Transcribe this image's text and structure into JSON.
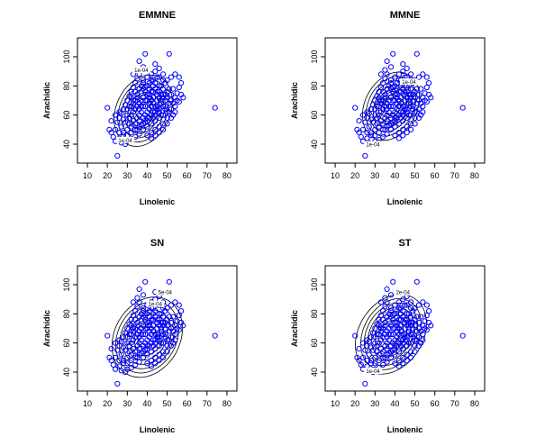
{
  "chart_data": [
    {
      "type": "scatter",
      "title": "EMMNE",
      "xlabel": "Linolenic",
      "ylabel": "Arachidic",
      "xlim": [
        5,
        85
      ],
      "ylim": [
        27,
        113
      ],
      "xticks": [
        10,
        20,
        30,
        40,
        50,
        60,
        70,
        80
      ],
      "yticks": [
        40,
        60,
        80,
        100
      ],
      "point_color": "#0000ff",
      "contour_color": "#000000",
      "contour": {
        "center": [
          38,
          63
        ],
        "axes": [
          [
            16,
            25
          ],
          [
            14,
            22
          ],
          [
            12,
            19
          ],
          [
            10,
            16
          ],
          [
            8.5,
            13
          ],
          [
            7,
            11
          ],
          [
            5.5,
            8.5
          ],
          [
            4,
            6
          ]
        ],
        "rotation": 0.45
      },
      "contour_labels": [
        {
          "text": "1e-04",
          "x": 37,
          "y": 90
        },
        {
          "text": "1e-04",
          "x": 29,
          "y": 42
        }
      ]
    },
    {
      "type": "scatter",
      "title": "MMNE",
      "xlabel": "Linolenic",
      "ylabel": "Arachidic",
      "xlim": [
        5,
        85
      ],
      "ylim": [
        27,
        113
      ],
      "xticks": [
        10,
        20,
        30,
        40,
        50,
        60,
        70,
        80
      ],
      "yticks": [
        40,
        60,
        80,
        100
      ],
      "point_color": "#0000ff",
      "contour_color": "#000000",
      "contour": {
        "center": [
          38,
          66
        ],
        "axes": [
          [
            16,
            24
          ],
          [
            14,
            21
          ],
          [
            12,
            18
          ],
          [
            10,
            15
          ],
          [
            8.5,
            12.5
          ],
          [
            7,
            10.5
          ],
          [
            5.5,
            8
          ],
          [
            4,
            6
          ]
        ],
        "rotation": 0.5
      },
      "contour_labels": [
        {
          "text": "1e-04",
          "x": 47,
          "y": 82
        },
        {
          "text": "1e-04",
          "x": 29,
          "y": 39
        }
      ]
    },
    {
      "type": "scatter",
      "title": "SN",
      "xlabel": "Linolenic",
      "ylabel": "Arachidic",
      "xlim": [
        5,
        85
      ],
      "ylim": [
        27,
        113
      ],
      "xticks": [
        10,
        20,
        30,
        40,
        50,
        60,
        70,
        80
      ],
      "yticks": [
        40,
        60,
        80,
        100
      ],
      "point_color": "#0000ff",
      "contour_color": "#000000",
      "contour": {
        "center": [
          40,
          64
        ],
        "axes": [
          [
            19,
            28
          ],
          [
            17,
            25
          ],
          [
            15,
            22
          ],
          [
            13,
            19
          ],
          [
            11,
            16
          ],
          [
            9,
            13
          ],
          [
            7,
            10
          ],
          [
            5,
            7
          ]
        ],
        "rotation": 0.4
      },
      "contour_labels": [
        {
          "text": "5e-04",
          "x": 49,
          "y": 94
        },
        {
          "text": "1e-04",
          "x": 44,
          "y": 86
        }
      ]
    },
    {
      "type": "scatter",
      "title": "ST",
      "xlabel": "Linolenic",
      "ylabel": "Arachidic",
      "xlim": [
        5,
        85
      ],
      "ylim": [
        27,
        113
      ],
      "xticks": [
        10,
        20,
        30,
        40,
        50,
        60,
        70,
        80
      ],
      "yticks": [
        40,
        60,
        80,
        100
      ],
      "point_color": "#0000ff",
      "contour_color": "#000000",
      "contour": {
        "center": [
          38,
          66
        ],
        "axes": [
          [
            20,
            28
          ],
          [
            17,
            25
          ],
          [
            15,
            22
          ],
          [
            13,
            19
          ],
          [
            11,
            16
          ],
          [
            9,
            13
          ],
          [
            7,
            10
          ],
          [
            5,
            7
          ]
        ],
        "rotation": 0.5
      },
      "contour_labels": [
        {
          "text": "2e-04",
          "x": 44,
          "y": 94
        },
        {
          "text": "1e-04",
          "x": 29,
          "y": 40
        }
      ]
    }
  ],
  "scatter_points": [
    [
      74,
      65
    ],
    [
      25,
      32
    ],
    [
      39,
      102
    ],
    [
      51,
      102
    ],
    [
      36,
      97
    ],
    [
      38,
      93
    ],
    [
      44,
      95
    ],
    [
      46,
      92
    ],
    [
      54,
      88
    ],
    [
      56,
      86
    ],
    [
      57,
      82
    ],
    [
      56,
      79
    ],
    [
      52,
      86
    ],
    [
      50,
      84
    ],
    [
      48,
      88
    ],
    [
      20,
      65
    ],
    [
      22,
      48
    ],
    [
      21,
      50
    ],
    [
      23,
      45
    ],
    [
      24,
      42
    ],
    [
      26,
      44
    ],
    [
      27,
      41
    ],
    [
      29,
      40
    ],
    [
      30,
      42
    ],
    [
      32,
      43
    ],
    [
      34,
      45
    ],
    [
      36,
      47
    ],
    [
      38,
      50
    ],
    [
      40,
      52
    ],
    [
      42,
      54
    ],
    [
      44,
      56
    ],
    [
      46,
      58
    ],
    [
      48,
      60
    ],
    [
      50,
      62
    ],
    [
      52,
      64
    ],
    [
      54,
      66
    ],
    [
      56,
      69
    ],
    [
      58,
      72
    ],
    [
      55,
      75
    ],
    [
      53,
      78
    ],
    [
      25,
      55
    ],
    [
      26,
      58
    ],
    [
      27,
      61
    ],
    [
      28,
      64
    ],
    [
      29,
      67
    ],
    [
      30,
      70
    ],
    [
      31,
      73
    ],
    [
      32,
      76
    ],
    [
      33,
      79
    ],
    [
      34,
      82
    ],
    [
      35,
      85
    ],
    [
      36,
      88
    ],
    [
      37,
      80
    ],
    [
      38,
      78
    ],
    [
      39,
      76
    ],
    [
      40,
      74
    ],
    [
      41,
      72
    ],
    [
      42,
      70
    ],
    [
      43,
      68
    ],
    [
      44,
      66
    ],
    [
      45,
      64
    ],
    [
      46,
      62
    ],
    [
      47,
      60
    ],
    [
      48,
      72
    ],
    [
      49,
      74
    ],
    [
      50,
      76
    ],
    [
      51,
      78
    ],
    [
      52,
      70
    ],
    [
      53,
      68
    ],
    [
      54,
      72
    ],
    [
      31,
      58
    ],
    [
      32,
      60
    ],
    [
      33,
      62
    ],
    [
      34,
      64
    ],
    [
      35,
      66
    ],
    [
      36,
      68
    ],
    [
      37,
      70
    ],
    [
      38,
      72
    ],
    [
      39,
      60
    ],
    [
      40,
      62
    ],
    [
      41,
      64
    ],
    [
      42,
      66
    ],
    [
      43,
      58
    ],
    [
      44,
      60
    ],
    [
      45,
      70
    ],
    [
      46,
      72
    ],
    [
      47,
      74
    ],
    [
      48,
      66
    ],
    [
      49,
      64
    ],
    [
      50,
      58
    ],
    [
      28,
      48
    ],
    [
      30,
      50
    ],
    [
      32,
      52
    ],
    [
      34,
      54
    ],
    [
      36,
      56
    ],
    [
      38,
      58
    ],
    [
      40,
      56
    ],
    [
      42,
      60
    ],
    [
      44,
      62
    ],
    [
      46,
      64
    ],
    [
      33,
      70
    ],
    [
      35,
      72
    ],
    [
      37,
      75
    ],
    [
      39,
      79
    ],
    [
      41,
      82
    ],
    [
      43,
      84
    ],
    [
      45,
      86
    ],
    [
      47,
      80
    ],
    [
      49,
      82
    ],
    [
      51,
      68
    ],
    [
      27,
      52
    ],
    [
      29,
      55
    ],
    [
      31,
      54
    ],
    [
      33,
      56
    ],
    [
      35,
      58
    ],
    [
      37,
      62
    ],
    [
      39,
      66
    ],
    [
      41,
      68
    ],
    [
      43,
      72
    ],
    [
      45,
      76
    ],
    [
      24,
      60
    ],
    [
      26,
      62
    ],
    [
      28,
      57
    ],
    [
      30,
      60
    ],
    [
      32,
      66
    ],
    [
      34,
      70
    ],
    [
      36,
      64
    ],
    [
      38,
      66
    ],
    [
      40,
      70
    ],
    [
      42,
      76
    ],
    [
      44,
      78
    ],
    [
      46,
      80
    ],
    [
      48,
      78
    ],
    [
      50,
      72
    ],
    [
      52,
      74
    ],
    [
      40,
      46
    ],
    [
      42,
      48
    ],
    [
      44,
      50
    ],
    [
      46,
      52
    ],
    [
      48,
      54
    ],
    [
      35,
      50
    ],
    [
      37,
      53
    ],
    [
      39,
      55
    ],
    [
      41,
      58
    ],
    [
      43,
      62
    ],
    [
      45,
      66
    ],
    [
      47,
      68
    ],
    [
      49,
      70
    ],
    [
      51,
      62
    ],
    [
      53,
      60
    ],
    [
      22,
      56
    ],
    [
      24,
      50
    ],
    [
      26,
      48
    ],
    [
      28,
      46
    ],
    [
      30,
      46
    ],
    [
      32,
      48
    ],
    [
      34,
      50
    ],
    [
      36,
      52
    ],
    [
      38,
      54
    ],
    [
      40,
      58
    ],
    [
      33,
      88
    ],
    [
      35,
      91
    ],
    [
      38,
      84
    ],
    [
      40,
      86
    ],
    [
      42,
      88
    ],
    [
      44,
      90
    ],
    [
      46,
      86
    ],
    [
      48,
      84
    ],
    [
      43,
      80
    ],
    [
      41,
      78
    ],
    [
      31,
      66
    ],
    [
      33,
      68
    ],
    [
      35,
      74
    ],
    [
      37,
      66
    ],
    [
      39,
      70
    ],
    [
      41,
      74
    ],
    [
      43,
      76
    ],
    [
      45,
      74
    ],
    [
      47,
      70
    ],
    [
      49,
      66
    ],
    [
      55,
      70
    ],
    [
      57,
      74
    ],
    [
      54,
      62
    ],
    [
      52,
      58
    ],
    [
      50,
      54
    ],
    [
      48,
      50
    ],
    [
      46,
      48
    ],
    [
      44,
      46
    ],
    [
      42,
      44
    ],
    [
      36,
      60
    ],
    [
      30,
      64
    ],
    [
      32,
      72
    ],
    [
      34,
      76
    ],
    [
      36,
      78
    ],
    [
      38,
      82
    ],
    [
      40,
      80
    ],
    [
      42,
      84
    ],
    [
      44,
      82
    ],
    [
      46,
      76
    ],
    [
      48,
      74
    ]
  ]
}
